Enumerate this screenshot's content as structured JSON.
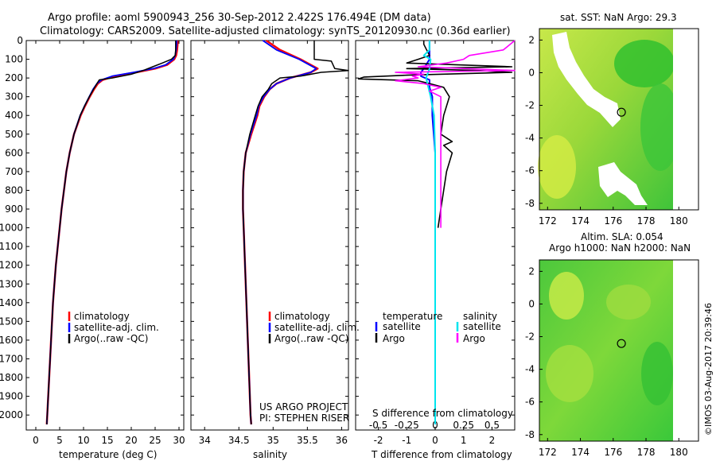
{
  "title": {
    "line1": "Argo profile: aoml 5900943_256 30-Sep-2012 2.422S 176.494E (DM data)",
    "line2": "Climatology: CARS2009. Satellite-adjusted climatology: synTS_20120930.nc (0.36d earlier)"
  },
  "credits": {
    "project": "US ARGO PROJECT",
    "pi": "PI: STEPHEN RISER",
    "watermark": "©IMOS 03-Aug-2017 20:39:46"
  },
  "colors": {
    "climatology": "#ff0000",
    "satellite": "#0000ff",
    "argo": "#000000",
    "sal_satellite": "#00e5ee",
    "sal_argo": "#ff00ff",
    "map_green": "#33cc33",
    "map_yellow": "#ccee33"
  },
  "chart_data": [
    {
      "type": "line",
      "name": "temperature",
      "xlabel": "temperature (deg C)",
      "ylabel": "",
      "xlim": [
        -2,
        31
      ],
      "ylim": [
        2080,
        0
      ],
      "xticks": [
        0,
        5,
        10,
        15,
        20,
        25,
        30
      ],
      "yticks": [
        0,
        100,
        200,
        300,
        400,
        500,
        600,
        700,
        800,
        900,
        1000,
        1100,
        1200,
        1300,
        1400,
        1500,
        1600,
        1700,
        1800,
        1900,
        2000
      ],
      "legend": [
        "climatology",
        "satellite-adj. clim.",
        "Argo(..raw -QC)"
      ],
      "series": [
        {
          "name": "climatology",
          "depth": [
            0,
            20,
            50,
            80,
            100,
            130,
            150,
            170,
            190,
            210,
            230,
            260,
            300,
            350,
            400,
            500,
            600,
            700,
            800,
            900,
            1000,
            1200,
            1400,
            1600,
            1800,
            2000,
            2050
          ],
          "values": [
            29.7,
            29.7,
            29.6,
            29.4,
            29.0,
            27.5,
            25.0,
            21.0,
            16.5,
            14.0,
            13.0,
            12.2,
            11.3,
            10.3,
            9.4,
            8.0,
            7.1,
            6.4,
            5.9,
            5.4,
            5.0,
            4.2,
            3.6,
            3.2,
            2.8,
            2.4,
            2.3
          ]
        },
        {
          "name": "satellite-adj. clim.",
          "depth": [
            0,
            20,
            50,
            80,
            100,
            130,
            150,
            170,
            190,
            210,
            230,
            260,
            300,
            350,
            400,
            500,
            600,
            700,
            800,
            900,
            1000,
            1200,
            1400,
            1600,
            1800,
            2000,
            2050
          ],
          "values": [
            29.5,
            29.5,
            29.4,
            29.2,
            28.8,
            27.2,
            24.6,
            20.5,
            16.0,
            13.8,
            12.8,
            12.0,
            11.2,
            10.2,
            9.3,
            8.0,
            7.1,
            6.4,
            5.9,
            5.4,
            5.0,
            4.2,
            3.6,
            3.2,
            2.8,
            2.4,
            2.3
          ]
        },
        {
          "name": "Argo(..raw -QC)",
          "depth": [
            0,
            20,
            50,
            80,
            100,
            120,
            140,
            160,
            180,
            200,
            210,
            230,
            260,
            300,
            350,
            400,
            500,
            600,
            700,
            800,
            900,
            1000,
            1200,
            1400,
            1600,
            1800,
            2000,
            2050
          ],
          "values": [
            29.3,
            29.3,
            29.3,
            29.2,
            28.4,
            26.5,
            24.5,
            22.5,
            20.0,
            16.0,
            13.3,
            12.8,
            12.1,
            11.2,
            10.2,
            9.3,
            8.0,
            7.1,
            6.4,
            5.9,
            5.4,
            5.0,
            4.2,
            3.6,
            3.2,
            2.8,
            2.4,
            2.3
          ]
        }
      ]
    },
    {
      "type": "line",
      "name": "salinity",
      "xlabel": "salinity",
      "xlim": [
        33.8,
        36.1
      ],
      "ylim": [
        2080,
        0
      ],
      "xticks": [
        34,
        34.5,
        35,
        35.5,
        36
      ],
      "legend": [
        "climatology",
        "satellite-adj. clim.",
        "Argo(..raw -QC)"
      ],
      "series": [
        {
          "name": "climatology",
          "depth": [
            0,
            50,
            100,
            150,
            170,
            200,
            230,
            260,
            300,
            350,
            400,
            500,
            600,
            700,
            800,
            900,
            1000,
            1200,
            1500,
            1800,
            2000,
            2050
          ],
          "values": [
            34.9,
            35.1,
            35.4,
            35.65,
            35.55,
            35.25,
            35.05,
            34.95,
            34.87,
            34.8,
            34.77,
            34.68,
            34.6,
            34.57,
            34.56,
            34.56,
            34.57,
            34.59,
            34.62,
            34.65,
            34.67,
            34.68
          ]
        },
        {
          "name": "satellite-adj. clim.",
          "depth": [
            0,
            50,
            100,
            150,
            170,
            200,
            230,
            260,
            300,
            350,
            400,
            500,
            600,
            700,
            800,
            900,
            1000,
            1200,
            1500,
            1800,
            2000,
            2050
          ],
          "values": [
            34.85,
            35.05,
            35.38,
            35.63,
            35.55,
            35.25,
            35.05,
            34.95,
            34.86,
            34.79,
            34.76,
            34.67,
            34.6,
            34.57,
            34.56,
            34.56,
            34.57,
            34.59,
            34.62,
            34.65,
            34.67,
            34.68
          ]
        },
        {
          "name": "Argo(..raw -QC)",
          "depth": [
            0,
            10,
            100,
            110,
            150,
            160,
            170,
            190,
            200,
            230,
            260,
            300,
            350,
            400,
            500,
            600,
            700,
            800,
            900,
            1000,
            1200,
            1500,
            1800,
            2000,
            2050
          ],
          "values": [
            35.6,
            35.6,
            35.6,
            35.85,
            35.9,
            36.1,
            35.7,
            35.4,
            35.1,
            34.98,
            34.93,
            34.84,
            34.78,
            34.74,
            34.66,
            34.6,
            34.57,
            34.56,
            34.56,
            34.57,
            34.59,
            34.62,
            34.65,
            34.67,
            34.68
          ]
        }
      ]
    },
    {
      "type": "line",
      "name": "differences",
      "xlabel": "T difference from climatology",
      "xlabel_top": "S difference from climatology",
      "xlim": [
        -2.8,
        2.8
      ],
      "ylim": [
        2080,
        0
      ],
      "xticks": [
        -2,
        -1,
        0,
        1,
        2
      ],
      "xticks_sal": [
        -0.5,
        -0.25,
        0,
        0.25,
        0.5
      ],
      "legend_temp_title": "temperature",
      "legend_sal_title": "salinity",
      "legend": [
        "satellite",
        "Argo",
        "satellite",
        "Argo"
      ],
      "series": [
        {
          "name": "temperature satellite",
          "depth": [
            0,
            50,
            100,
            150,
            170,
            190,
            210,
            250,
            300,
            400,
            600,
            1000,
            1500,
            2050
          ],
          "values": [
            -0.2,
            -0.2,
            -0.2,
            -0.4,
            -0.5,
            -0.5,
            -0.2,
            -0.2,
            -0.1,
            -0.1,
            0,
            0,
            0,
            0
          ]
        },
        {
          "name": "temperature Argo",
          "depth": [
            0,
            20,
            50,
            80,
            100,
            120,
            140,
            150,
            160,
            170,
            185,
            195,
            205,
            215,
            230,
            250,
            300,
            400,
            500,
            540,
            560,
            600,
            700,
            800,
            900,
            1000
          ],
          "values": [
            -0.4,
            -0.4,
            -0.3,
            -0.2,
            -0.6,
            -1.0,
            2.7,
            -1.0,
            1.5,
            2.7,
            -1.0,
            -2.5,
            -2.7,
            -0.6,
            -0.2,
            0.3,
            0.5,
            0.3,
            0.2,
            0.6,
            0.3,
            0.6,
            0.4,
            0.3,
            0.2,
            0.1
          ]
        },
        {
          "name": "salinity satellite",
          "depth": [
            0,
            50,
            80,
            100,
            150,
            200,
            300,
            400,
            600,
            1000,
            1500,
            2050
          ],
          "values": [
            -0.05,
            -0.05,
            -0.1,
            -0.04,
            -0.05,
            -0.08,
            -0.04,
            -0.01,
            0,
            0,
            0,
            0
          ]
        },
        {
          "name": "salinity Argo",
          "depth": [
            0,
            50,
            80,
            100,
            120,
            140,
            160,
            170,
            180,
            190,
            200,
            215,
            230,
            250,
            270,
            300,
            400,
            600,
            1000
          ],
          "values": [
            0.7,
            0.6,
            0.3,
            0.25,
            0.1,
            -0.15,
            0.7,
            -0.35,
            -0.1,
            -0.2,
            -0.15,
            -0.35,
            -0.1,
            0.05,
            -0.05,
            0.05,
            0.05,
            0.05,
            0.05
          ]
        }
      ]
    },
    {
      "type": "heatmap",
      "name": "sst-map",
      "title": "sat. SST: NaN Argo: 29.3",
      "xlim": [
        171.5,
        181.2
      ],
      "ylim": [
        -8.4,
        2.7
      ],
      "xticks": [
        172,
        174,
        176,
        178,
        180
      ],
      "yticks": [
        2,
        0,
        -2,
        -4,
        -6,
        -8
      ],
      "marker": {
        "lon": 176.5,
        "lat": -2.42
      }
    },
    {
      "type": "heatmap",
      "name": "sla-map",
      "title": "Altim. SLA: 0.054",
      "subtitle": "Argo h1000: NaN h2000: NaN",
      "xlim": [
        171.5,
        181.2
      ],
      "ylim": [
        -8.4,
        2.7
      ],
      "xticks": [
        172,
        174,
        176,
        178,
        180
      ],
      "yticks": [
        2,
        0,
        -2,
        -4,
        -6,
        -8
      ],
      "marker": {
        "lon": 176.5,
        "lat": -2.42
      }
    }
  ]
}
